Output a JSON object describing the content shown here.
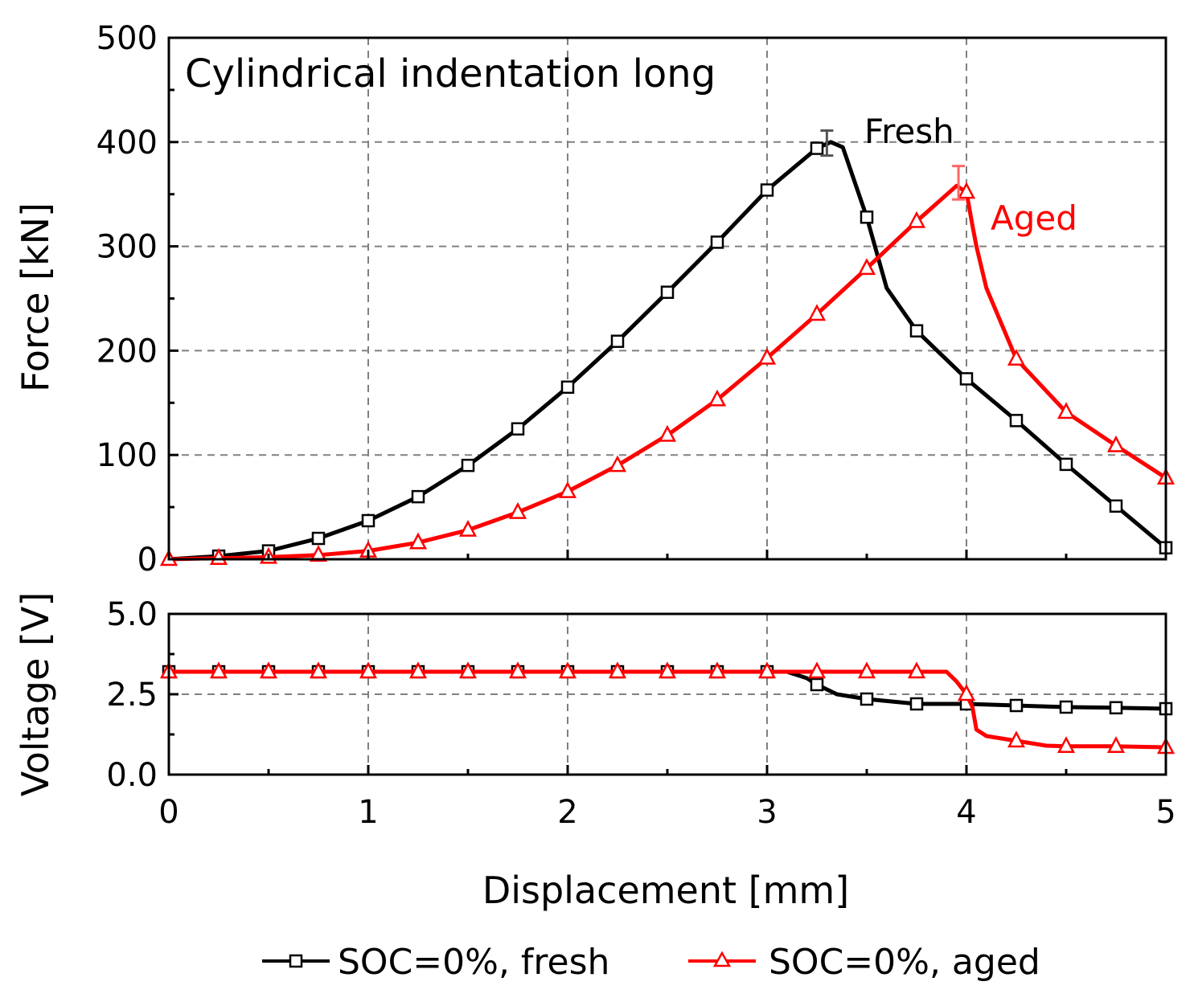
{
  "chart_data": [
    {
      "type": "line",
      "title": "Cylindrical indentation long",
      "xlabel": "Displacement [mm]",
      "ylabel": "Force [kN]",
      "xlim": [
        0,
        5
      ],
      "ylim": [
        0,
        500
      ],
      "x_ticks": [
        "0",
        "1",
        "2",
        "3",
        "4",
        "5"
      ],
      "y_ticks": [
        "0",
        "100",
        "200",
        "300",
        "400",
        "500"
      ],
      "grid": true,
      "annotations": [
        {
          "text": "Fresh",
          "color": "#000000"
        },
        {
          "text": "Aged",
          "color": "#ff0000"
        }
      ],
      "error_bars": [
        {
          "series": "SOC=0%, fresh",
          "x": 3.3,
          "y": 398,
          "low": 387,
          "high": 411
        },
        {
          "series": "SOC=0%, aged",
          "x": 3.96,
          "y": 361,
          "low": 345,
          "high": 377
        }
      ],
      "series": [
        {
          "name": "SOC=0%, fresh",
          "color": "#000000",
          "marker": "square",
          "x": [
            0,
            0.25,
            0.5,
            0.75,
            1.0,
            1.25,
            1.5,
            1.75,
            2.0,
            2.25,
            2.5,
            2.75,
            3.0,
            3.25,
            3.32,
            3.38,
            3.5,
            3.6,
            3.75,
            4.0,
            4.25,
            4.5,
            4.75,
            5.0
          ],
          "values": [
            0,
            3,
            8,
            20,
            37,
            60,
            90,
            125,
            165,
            209,
            256,
            304,
            354,
            394,
            400,
            395,
            328,
            260,
            219,
            173,
            133,
            91,
            51,
            11
          ],
          "marker_x": [
            0.25,
            0.5,
            0.75,
            1.0,
            1.25,
            1.5,
            1.75,
            2.0,
            2.25,
            2.5,
            2.75,
            3.0,
            3.25,
            3.5,
            3.75,
            4.0,
            4.25,
            4.5,
            4.75,
            5.0
          ],
          "marker_values": [
            3,
            8,
            20,
            37,
            60,
            90,
            125,
            165,
            209,
            256,
            304,
            354,
            394,
            328,
            219,
            173,
            133,
            91,
            51,
            11
          ]
        },
        {
          "name": "SOC=0%, aged",
          "color": "#ff0000",
          "marker": "triangle",
          "x": [
            0,
            0.25,
            0.5,
            0.75,
            1.0,
            1.25,
            1.5,
            1.75,
            2.0,
            2.25,
            2.5,
            2.75,
            3.0,
            3.25,
            3.5,
            3.75,
            3.95,
            4.0,
            4.03,
            4.05,
            4.1,
            4.25,
            4.5,
            4.75,
            5.0
          ],
          "values": [
            0,
            1,
            2,
            4,
            8,
            16,
            28,
            45,
            65,
            90,
            119,
            153,
            193,
            235,
            279,
            324,
            358,
            352,
            320,
            300,
            260,
            192,
            141,
            109,
            78
          ],
          "marker_x": [
            0,
            0.25,
            0.5,
            0.75,
            1.0,
            1.25,
            1.5,
            1.75,
            2.0,
            2.25,
            2.5,
            2.75,
            3.0,
            3.25,
            3.5,
            3.75,
            4.0,
            4.25,
            4.5,
            4.75,
            5.0
          ],
          "marker_values": [
            0,
            1,
            2,
            4,
            8,
            16,
            28,
            45,
            65,
            90,
            119,
            153,
            193,
            235,
            279,
            324,
            352,
            192,
            141,
            109,
            78
          ]
        }
      ]
    },
    {
      "type": "line",
      "xlabel": "Displacement [mm]",
      "ylabel": "Voltage [V]",
      "xlim": [
        0,
        5
      ],
      "ylim": [
        0,
        5
      ],
      "x_ticks": [
        "0",
        "1",
        "2",
        "3",
        "4",
        "5"
      ],
      "y_ticks": [
        "0.0",
        "2.5",
        "5.0"
      ],
      "grid": true,
      "legend": {
        "position": "bottom"
      },
      "series": [
        {
          "name": "SOC=0%, fresh",
          "color": "#000000",
          "marker": "square",
          "x": [
            0,
            3.1,
            3.2,
            3.25,
            3.35,
            3.5,
            3.75,
            4.0,
            4.25,
            4.5,
            4.75,
            5.0
          ],
          "values": [
            3.2,
            3.2,
            3.0,
            2.8,
            2.5,
            2.35,
            2.2,
            2.2,
            2.15,
            2.1,
            2.08,
            2.05
          ],
          "marker_x": [
            0,
            0.25,
            0.5,
            0.75,
            1.0,
            1.25,
            1.5,
            1.75,
            2.0,
            2.25,
            2.5,
            2.75,
            3.0,
            3.25,
            3.5,
            3.75,
            4.0,
            4.25,
            4.5,
            4.75,
            5.0
          ],
          "marker_values": [
            3.2,
            3.2,
            3.2,
            3.2,
            3.2,
            3.2,
            3.2,
            3.2,
            3.2,
            3.2,
            3.2,
            3.2,
            3.2,
            2.8,
            2.35,
            2.2,
            2.2,
            2.15,
            2.1,
            2.08,
            2.05
          ]
        },
        {
          "name": "SOC=0%, aged",
          "color": "#ff0000",
          "marker": "triangle",
          "x": [
            0,
            3.9,
            3.95,
            4.0,
            4.03,
            4.05,
            4.1,
            4.25,
            4.4,
            4.5,
            4.75,
            5.0
          ],
          "values": [
            3.2,
            3.2,
            2.9,
            2.5,
            2.1,
            1.4,
            1.2,
            1.05,
            0.9,
            0.88,
            0.88,
            0.85
          ],
          "marker_x": [
            0,
            0.25,
            0.5,
            0.75,
            1.0,
            1.25,
            1.5,
            1.75,
            2.0,
            2.25,
            2.5,
            2.75,
            3.0,
            3.25,
            3.5,
            3.75,
            4.0,
            4.25,
            4.5,
            4.75,
            5.0
          ],
          "marker_values": [
            3.2,
            3.2,
            3.2,
            3.2,
            3.2,
            3.2,
            3.2,
            3.2,
            3.2,
            3.2,
            3.2,
            3.2,
            3.2,
            3.2,
            3.2,
            3.2,
            2.5,
            1.05,
            0.88,
            0.88,
            0.85
          ]
        }
      ]
    }
  ]
}
